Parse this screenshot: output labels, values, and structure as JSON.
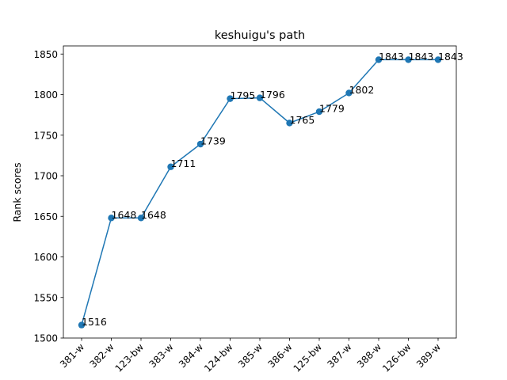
{
  "chart_data": {
    "type": "line",
    "title": "keshuigu's path",
    "xlabel": "",
    "ylabel": "Rank scores",
    "categories": [
      "381-w",
      "382-w",
      "123-bw",
      "383-w",
      "384-w",
      "124-bw",
      "385-w",
      "386-w",
      "125-bw",
      "387-w",
      "388-w",
      "126-bw",
      "389-w"
    ],
    "values": [
      1516,
      1648,
      1648,
      1711,
      1739,
      1795,
      1796,
      1765,
      1779,
      1802,
      1843,
      1843,
      1843
    ],
    "ylim": [
      1500,
      1860
    ],
    "yticks": [
      1500,
      1550,
      1600,
      1650,
      1700,
      1750,
      1800,
      1850
    ],
    "grid": false,
    "color": "#1f77b4",
    "marker": "circle",
    "xtick_rotation_deg": 45,
    "data_labels": true
  }
}
